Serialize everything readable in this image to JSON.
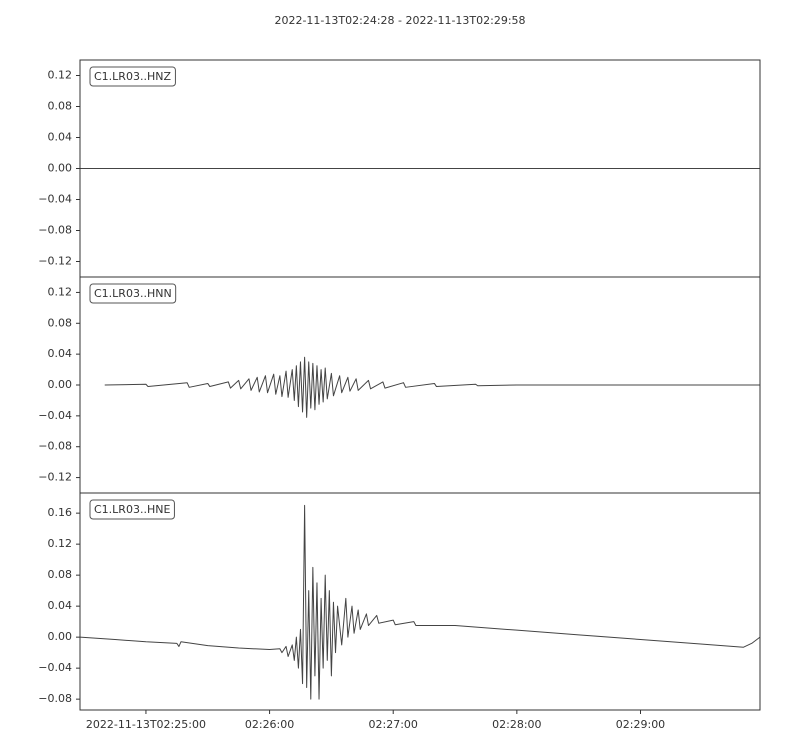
{
  "title": "2022-11-13T02:24:28  -  2022-11-13T02:29:58",
  "chart_data": [
    {
      "type": "line",
      "label": "C1.LR03..HNZ",
      "color": "#444444",
      "xlim": [
        "02:24:28",
        "02:29:58"
      ],
      "ylim": [
        -0.14,
        0.14
      ],
      "yticks": [
        0.12,
        0.08,
        0.04,
        {
          "value": 0,
          "label": "0.00"
        },
        {
          "value": -0.04,
          "label": "−0.04"
        },
        {
          "value": -0.08,
          "label": "−0.08"
        },
        {
          "value": -0.12,
          "label": "−0.12"
        }
      ],
      "x": [
        "02:24:28",
        "02:25:30",
        "02:26:20",
        "02:27:30",
        "02:28:30",
        "02:29:58"
      ],
      "values": [
        0,
        0,
        0,
        0,
        0,
        0
      ]
    },
    {
      "type": "line",
      "label": "C1.LR03..HNN",
      "color": "#444444",
      "xlim": [
        "02:24:28",
        "02:29:58"
      ],
      "ylim": [
        -0.14,
        0.14
      ],
      "yticks": [
        0.12,
        0.08,
        0.04,
        {
          "value": 0,
          "label": "0.00"
        },
        {
          "value": -0.04,
          "label": "−0.04"
        },
        {
          "value": -0.08,
          "label": "−0.08"
        },
        {
          "value": -0.12,
          "label": "−0.12"
        }
      ],
      "x": [
        "02:24:40",
        "02:25:00",
        "02:25:01",
        "02:25:20",
        "02:25:21",
        "02:25:30",
        "02:25:31",
        "02:25:40",
        "02:25:41",
        "02:25:45",
        "02:25:46",
        "02:25:50",
        "02:25:51",
        "02:25:54",
        "02:25:55",
        "02:25:58",
        "02:25:59",
        "02:26:02",
        "02:26:03",
        "02:26:05",
        "02:26:06",
        "02:26:08",
        "02:26:09",
        "02:26:11",
        "02:26:12",
        "02:26:13",
        "02:26:14",
        "02:26:15",
        "02:26:16",
        "02:26:17",
        "02:26:18",
        "02:26:19",
        "02:26:20",
        "02:26:21",
        "02:26:22",
        "02:26:23",
        "02:26:24",
        "02:26:25",
        "02:26:26",
        "02:26:27",
        "02:26:28",
        "02:26:30",
        "02:26:31",
        "02:26:34",
        "02:26:35",
        "02:26:38",
        "02:26:39",
        "02:26:42",
        "02:26:43",
        "02:26:48",
        "02:26:49",
        "02:26:55",
        "02:26:56",
        "02:27:05",
        "02:27:06",
        "02:27:20",
        "02:27:21",
        "02:27:40",
        "02:27:41",
        "02:28:00",
        "02:29:58"
      ],
      "values": [
        0,
        0.001,
        -0.002,
        0.003,
        -0.003,
        0.002,
        -0.002,
        0.004,
        -0.004,
        0.006,
        -0.005,
        0.008,
        -0.007,
        0.01,
        -0.009,
        0.012,
        -0.01,
        0.014,
        -0.012,
        0.012,
        -0.015,
        0.018,
        -0.016,
        0.02,
        -0.02,
        0.025,
        -0.028,
        0.03,
        -0.035,
        0.036,
        -0.042,
        0.03,
        -0.03,
        0.028,
        -0.032,
        0.025,
        -0.025,
        0.02,
        -0.022,
        0.022,
        -0.018,
        0.015,
        -0.014,
        0.012,
        -0.01,
        0.01,
        -0.008,
        0.008,
        -0.007,
        0.006,
        -0.005,
        0.004,
        -0.004,
        0.003,
        -0.003,
        0.002,
        -0.002,
        0.001,
        -0.001,
        0,
        0
      ]
    },
    {
      "type": "line",
      "label": "C1.LR03..HNE",
      "color": "#444444",
      "xlim": [
        "02:24:28",
        "02:29:58"
      ],
      "ylim": [
        -0.094,
        0.186
      ],
      "xticks": [
        {
          "value": "02:25:00",
          "label": "2022-11-13T02:25:00"
        },
        "02:26:00",
        "02:27:00",
        "02:28:00",
        "02:29:00"
      ],
      "yticks": [
        0.16,
        0.12,
        0.08,
        0.04,
        {
          "value": 0,
          "label": "0.00"
        },
        {
          "value": -0.04,
          "label": "−0.04"
        },
        {
          "value": -0.08,
          "label": "−0.08"
        }
      ],
      "x": [
        "02:24:28",
        "02:24:45",
        "02:25:00",
        "02:25:15",
        "02:25:16",
        "02:25:17",
        "02:25:30",
        "02:25:45",
        "02:26:00",
        "02:26:05",
        "02:26:06",
        "02:26:08",
        "02:26:09",
        "02:26:11",
        "02:26:12",
        "02:26:13",
        "02:26:14",
        "02:26:15",
        "02:26:16",
        "02:26:17",
        "02:26:18",
        "02:26:19",
        "02:26:20",
        "02:26:21",
        "02:26:22",
        "02:26:23",
        "02:26:24",
        "02:26:25",
        "02:26:26",
        "02:26:27",
        "02:26:28",
        "02:26:29",
        "02:26:30",
        "02:26:31",
        "02:26:32",
        "02:26:33",
        "02:26:35",
        "02:26:37",
        "02:26:38",
        "02:26:40",
        "02:26:41",
        "02:26:43",
        "02:26:44",
        "02:26:47",
        "02:26:48",
        "02:26:52",
        "02:26:53",
        "02:27:00",
        "02:27:01",
        "02:27:10",
        "02:27:11",
        "02:27:30",
        "02:28:00",
        "02:28:30",
        "02:29:00",
        "02:29:30",
        "02:29:50",
        "02:29:54",
        "02:29:58"
      ],
      "values": [
        0,
        -0.003,
        -0.006,
        -0.008,
        -0.012,
        -0.006,
        -0.011,
        -0.014,
        -0.016,
        -0.015,
        -0.02,
        -0.012,
        -0.025,
        -0.01,
        -0.03,
        0,
        -0.04,
        0.01,
        -0.06,
        0.17,
        -0.065,
        0.06,
        -0.08,
        0.09,
        -0.05,
        0.07,
        -0.08,
        0.05,
        -0.04,
        0.08,
        -0.03,
        0.06,
        -0.05,
        0.045,
        -0.02,
        0.04,
        -0.01,
        0.05,
        0,
        0.04,
        0.005,
        0.035,
        0.01,
        0.03,
        0.015,
        0.028,
        0.018,
        0.022,
        0.016,
        0.02,
        0.015,
        0.015,
        0.009,
        0.003,
        -0.003,
        -0.009,
        -0.013,
        -0.008,
        0
      ]
    }
  ]
}
